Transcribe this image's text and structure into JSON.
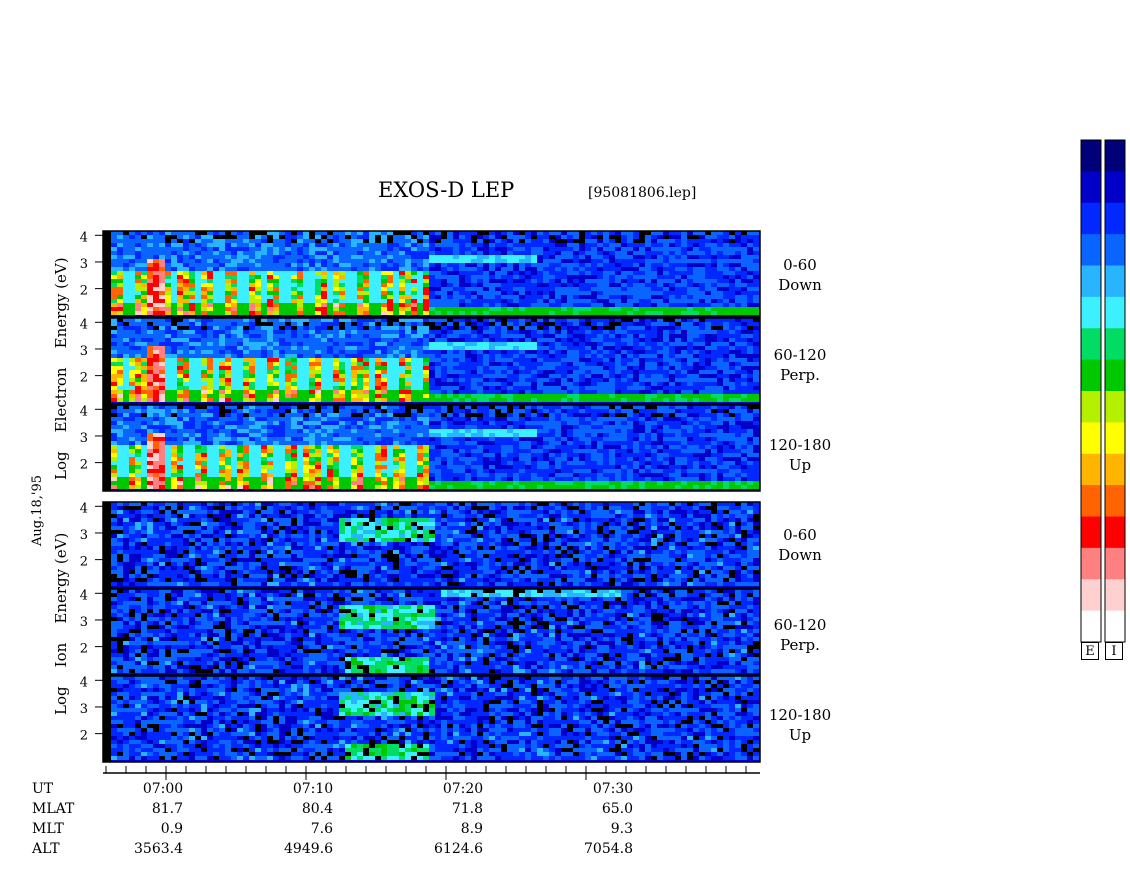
{
  "header": {
    "title": "EXOS-D LEP",
    "file": "[95081806.lep]",
    "date": "Aug.18,'95"
  },
  "colors": {
    "spectrum": [
      "#00007a",
      "#0000c8",
      "#0028ff",
      "#0a64ff",
      "#28b4ff",
      "#3cf0ff",
      "#00dc64",
      "#00c800",
      "#b4f000",
      "#ffff00",
      "#ffb400",
      "#ff6400",
      "#ff0000",
      "#ff8080",
      "#ffd0d0",
      "#ffffff"
    ],
    "frame": "#000000"
  },
  "chart_data": {
    "type": "heatmap",
    "electron_label": [
      "Log",
      "Electron",
      "Energy",
      "(eV)"
    ],
    "ion_label": [
      "Log",
      "Ion",
      "Energy",
      "(eV)"
    ],
    "y_ticks": [
      "4",
      "3",
      "2"
    ],
    "y_ticks_bottom": [
      "4",
      "3",
      "2"
    ],
    "panels": [
      {
        "species": "Electron",
        "pitch": "0-60",
        "dir": "Down"
      },
      {
        "species": "Electron",
        "pitch": "60-120",
        "dir": "Perp."
      },
      {
        "species": "Electron",
        "pitch": "120-180",
        "dir": "Up"
      },
      {
        "species": "Ion",
        "pitch": "0-60",
        "dir": "Down"
      },
      {
        "species": "Ion",
        "pitch": "60-120",
        "dir": "Perp."
      },
      {
        "species": "Ion",
        "pitch": "120-180",
        "dir": "Up"
      }
    ],
    "x_ticks": [
      "07:00",
      "07:10",
      "07:20",
      "07:30"
    ],
    "colorbar_labels": [
      "E",
      "I"
    ]
  },
  "footer": {
    "rows": [
      {
        "label": "UT",
        "values": [
          "",
          "",
          "",
          ""
        ]
      },
      {
        "label": "MLAT",
        "values": [
          "81.7",
          "80.4",
          "71.8",
          "65.0"
        ]
      },
      {
        "label": "MLT",
        "values": [
          "0.9",
          "7.6",
          "8.9",
          "9.3"
        ]
      },
      {
        "label": "ALT",
        "values": [
          "3563.4",
          "4949.6",
          "6124.6",
          "7054.8"
        ]
      }
    ]
  }
}
